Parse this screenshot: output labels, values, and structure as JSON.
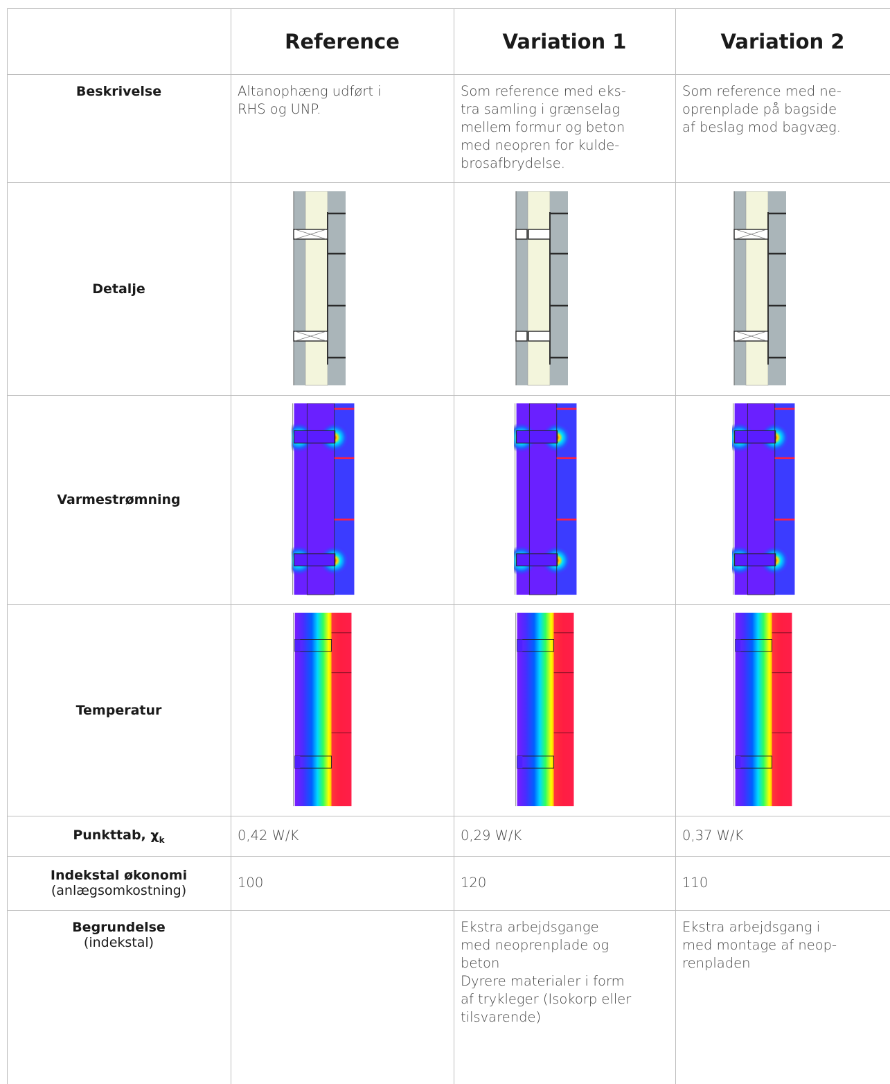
{
  "table": {
    "columns": [
      "Reference",
      "Variation 1",
      "Variation 2"
    ],
    "rows": [
      {
        "label": "Beskrivelse",
        "cells": [
          [
            "Altanophæng udført i",
            "RHS og UNP."
          ],
          [
            "Som reference med eks-",
            "tra samling i grænselag",
            "mellem formur og beton",
            "med neopren for kulde-",
            "brosafbrydelse."
          ],
          [
            "Som reference med ne-",
            "oprenplade på bagside",
            "af beslag mod bagvæg."
          ]
        ]
      },
      {
        "label": "Detalje"
      },
      {
        "label": "Varmestrømning"
      },
      {
        "label": "Temperatur"
      },
      {
        "label": "Punkttab, χ",
        "label_subscript": "k",
        "cells": [
          [
            "0,42 W/K"
          ],
          [
            "0,29 W/K"
          ],
          [
            "0,37 W/K"
          ]
        ]
      },
      {
        "label": "Indekstal økonomi",
        "sublabel": "(anlægsomkostning)",
        "cells": [
          [
            "100"
          ],
          [
            "120"
          ],
          [
            "110"
          ]
        ]
      },
      {
        "label": "Begrundelse",
        "sublabel": "(indekstal)",
        "cells": [
          [],
          [
            "Ekstra arbejdsgange",
            "med neoprenplade og",
            "beton",
            "Dyrere materialer i form",
            "af trykleger (Isokorp eller",
            "tilsvarende)"
          ],
          [
            "Ekstra arbejdsgang i",
            "med montage af neop-",
            "renpladen"
          ]
        ]
      }
    ]
  }
}
